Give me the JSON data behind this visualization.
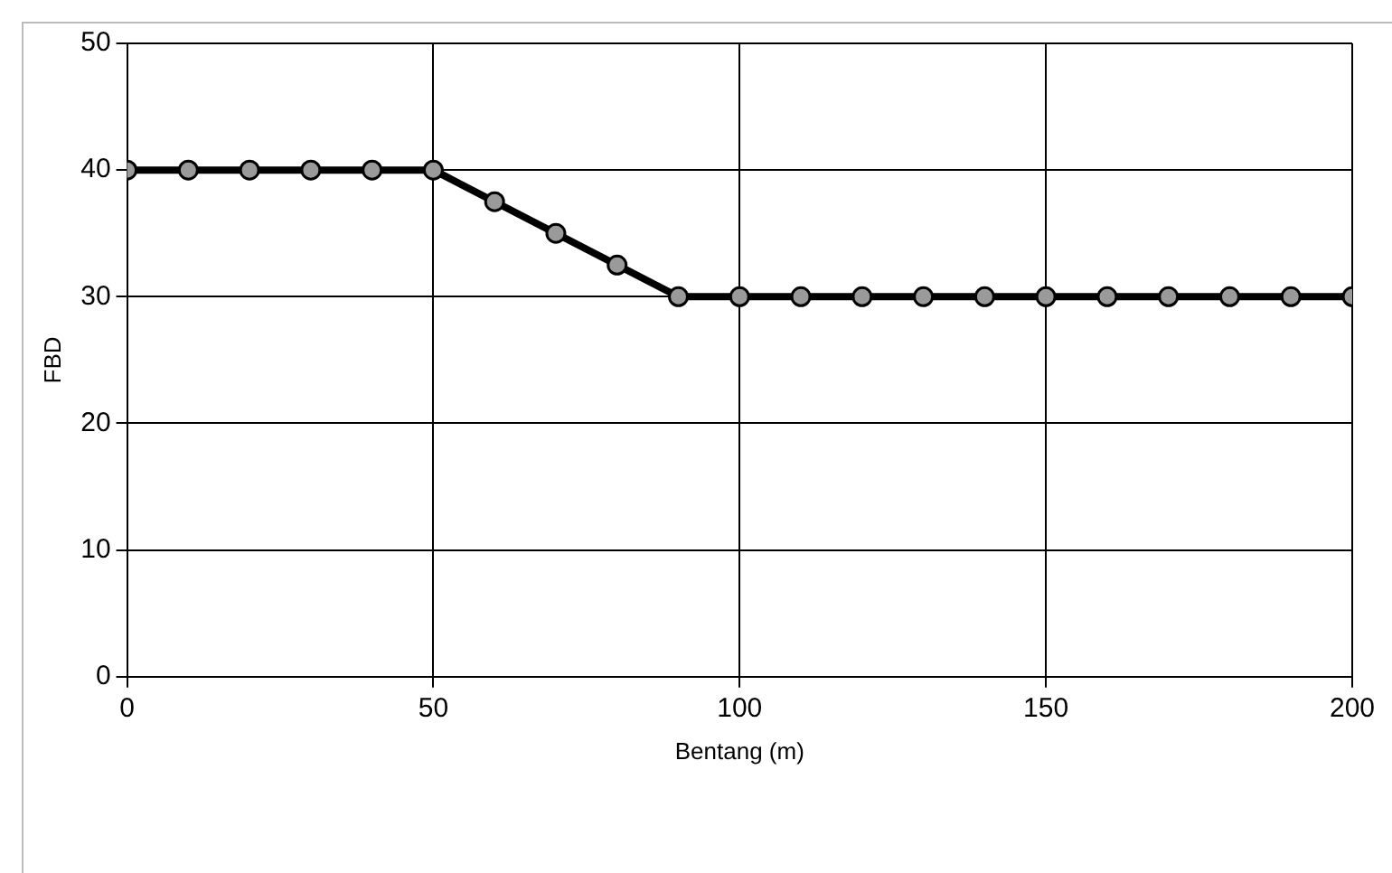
{
  "chart_data": {
    "type": "line",
    "xlabel": "Bentang (m)",
    "ylabel": "FBD",
    "x": [
      0,
      10,
      20,
      30,
      40,
      50,
      60,
      70,
      80,
      90,
      100,
      110,
      120,
      130,
      140,
      150,
      160,
      170,
      180,
      190,
      200
    ],
    "series": [
      {
        "color": "#000000",
        "values": [
          40,
          40,
          40,
          40,
          40,
          40,
          37.5,
          35,
          32.5,
          30,
          30,
          30,
          30,
          30,
          30,
          30,
          30,
          30,
          30,
          30,
          30
        ]
      }
    ],
    "xlim": [
      0,
      200
    ],
    "xticks": [
      0,
      50,
      100,
      150,
      200
    ],
    "ylim": [
      0,
      50
    ],
    "yticks": [
      0,
      10,
      20,
      30,
      40,
      50
    ],
    "grid": true,
    "legend": false,
    "marker": "circle",
    "line_style": "solid"
  }
}
